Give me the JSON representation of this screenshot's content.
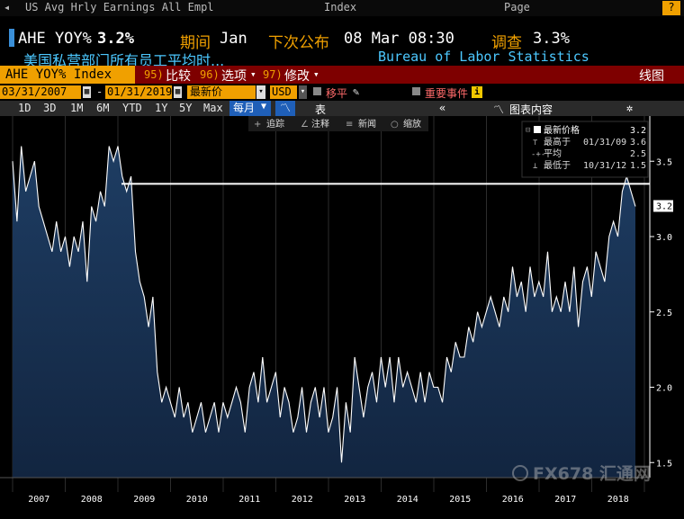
{
  "topbar": {
    "partial_text": "US Avg Hrly Earnings All Empl",
    "partial_text2": "Index",
    "partial_text3": "Page"
  },
  "header": {
    "ticker_label": "AHE YOY%",
    "ticker_value": "3.2%",
    "period_label": "期间",
    "period_value": "Jan",
    "next_release_label": "下次公布",
    "next_release_value": "08 Mar 08:30",
    "survey_label": "调查",
    "survey_value": "3.3%",
    "description": "美国私营部门所有员工平均时...",
    "source": "Bureau of Labor Statistics"
  },
  "toolbar": {
    "index_name": "AHE YOY% Index",
    "compare_num": "95)",
    "compare_label": "比较",
    "options_num": "96)",
    "options_label": "选项",
    "edit_num": "97)",
    "edit_label": "修改",
    "chart_type": "线图"
  },
  "controls": {
    "start_date": "03/31/2007",
    "end_date": "01/31/2019",
    "price_type": "最新价",
    "currency": "USD",
    "smooth_label": "移平",
    "events_label": "重要事件"
  },
  "ranges": [
    "1D",
    "3D",
    "1M",
    "6M",
    "YTD",
    "1Y",
    "5Y",
    "Max"
  ],
  "frequency": "每月",
  "table_label": "表",
  "chart_contents_label": "图表内容",
  "annotation_tools": [
    "追踪",
    "注释",
    "新闻",
    "缩放"
  ],
  "legend": {
    "items": [
      {
        "label": "最新价格",
        "value": "3.2",
        "date": ""
      },
      {
        "label": "最高于",
        "date": "01/31/09",
        "value": "3.6"
      },
      {
        "label": "平均",
        "date": "",
        "value": "2.5"
      },
      {
        "label": "最低于",
        "date": "10/31/12",
        "value": "1.5"
      }
    ]
  },
  "watermark": "FX678 汇通网",
  "colors": {
    "accent": "#f0a000",
    "header_bar": "#7e0000",
    "series_fill": "#1b3556",
    "series_line": "#ffffff",
    "reference_line": "#ffffff",
    "axis_text": "#ffffff"
  },
  "chart_data": {
    "type": "area",
    "title": "",
    "xlabel": "",
    "ylabel": "",
    "x_ticks": [
      "2007",
      "2008",
      "2009",
      "2010",
      "2011",
      "2012",
      "2013",
      "2014",
      "2015",
      "2016",
      "2017",
      "2018"
    ],
    "y_ticks": [
      "1.5",
      "2.0",
      "2.5",
      "3.0",
      "3.5"
    ],
    "ylim": [
      1.4,
      3.8
    ],
    "reference_value": 3.35,
    "last_value_label": "3.2",
    "series": [
      {
        "values": [
          3.5,
          3.1,
          3.6,
          3.3,
          3.4,
          3.5,
          3.2,
          3.1,
          3.0,
          2.9,
          3.1,
          2.9,
          3.0,
          2.8,
          3.0,
          2.9,
          3.1,
          2.7,
          3.2,
          3.1,
          3.3,
          3.2,
          3.6,
          3.5,
          3.6,
          3.4,
          3.3,
          3.4,
          2.9,
          2.7,
          2.6,
          2.4,
          2.6,
          2.1,
          1.9,
          2.0,
          1.9,
          1.8,
          2.0,
          1.8,
          1.9,
          1.7,
          1.8,
          1.9,
          1.7,
          1.8,
          1.9,
          1.7,
          1.9,
          1.8,
          1.9,
          2.0,
          1.9,
          1.7,
          2.0,
          2.1,
          1.9,
          2.2,
          1.9,
          2.0,
          2.1,
          1.8,
          2.0,
          1.9,
          1.7,
          1.8,
          2.0,
          1.7,
          1.9,
          2.0,
          1.8,
          2.0,
          1.7,
          1.8,
          2.0,
          1.5,
          1.9,
          1.7,
          2.2,
          2.0,
          1.8,
          2.0,
          2.1,
          1.9,
          2.2,
          2.0,
          2.2,
          1.9,
          2.2,
          2.0,
          2.1,
          2.0,
          1.9,
          2.1,
          1.9,
          2.1,
          2.0,
          2.0,
          1.9,
          2.2,
          2.1,
          2.3,
          2.2,
          2.2,
          2.4,
          2.3,
          2.5,
          2.4,
          2.5,
          2.6,
          2.5,
          2.4,
          2.6,
          2.5,
          2.8,
          2.6,
          2.7,
          2.5,
          2.8,
          2.6,
          2.7,
          2.6,
          2.9,
          2.5,
          2.6,
          2.5,
          2.7,
          2.5,
          2.8,
          2.4,
          2.7,
          2.8,
          2.6,
          2.9,
          2.8,
          2.7,
          3.0,
          3.1,
          3.0,
          3.3,
          3.4,
          3.3,
          3.2
        ]
      }
    ]
  }
}
